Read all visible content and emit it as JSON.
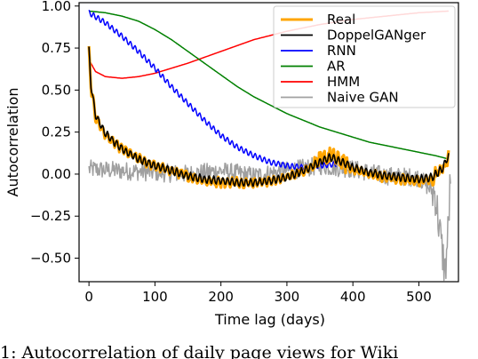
{
  "caption": "1: Autocorrelation of daily page views for Wiki",
  "chart_data": {
    "type": "line",
    "xlabel": "Time lag (days)",
    "ylabel": "Autocorrelation",
    "xlim": [
      -15,
      560
    ],
    "ylim": [
      -0.64,
      1.02
    ],
    "xticks": [
      0,
      100,
      200,
      300,
      400,
      500
    ],
    "yticks": [
      1.0,
      0.75,
      0.5,
      0.25,
      0.0,
      -0.25,
      -0.5
    ],
    "ytick_labels": [
      "1.00",
      "0.75",
      "0.50",
      "0.25",
      "0.00",
      "−0.25",
      "−0.50"
    ],
    "grid": false,
    "legend_position": "top-right",
    "series": [
      {
        "name": "Real",
        "color": "#ffa500",
        "x": [
          0,
          3,
          10,
          25,
          50,
          75,
          100,
          125,
          150,
          175,
          200,
          225,
          250,
          275,
          300,
          325,
          350,
          365,
          380,
          400,
          425,
          450,
          475,
          500,
          520,
          535,
          545
        ],
        "values": [
          0.73,
          0.52,
          0.34,
          0.23,
          0.15,
          0.09,
          0.05,
          0.02,
          -0.01,
          -0.04,
          -0.05,
          -0.05,
          -0.05,
          -0.04,
          -0.02,
          0.02,
          0.08,
          0.11,
          0.08,
          0.03,
          0.0,
          -0.02,
          -0.03,
          -0.04,
          -0.03,
          0.02,
          0.1
        ]
      },
      {
        "name": "DoppelGANger",
        "color": "#000000",
        "x": [
          0,
          3,
          10,
          25,
          50,
          75,
          100,
          125,
          150,
          175,
          200,
          225,
          250,
          275,
          300,
          325,
          350,
          365,
          380,
          400,
          425,
          450,
          475,
          500,
          520,
          535,
          545
        ],
        "values": [
          0.74,
          0.53,
          0.35,
          0.24,
          0.15,
          0.09,
          0.05,
          0.02,
          -0.01,
          -0.03,
          -0.04,
          -0.05,
          -0.05,
          -0.04,
          -0.02,
          0.02,
          0.07,
          0.1,
          0.08,
          0.04,
          0.01,
          -0.01,
          -0.02,
          -0.03,
          -0.02,
          0.03,
          0.11
        ]
      },
      {
        "name": "RNN",
        "color": "#0000ff",
        "x": [
          0,
          25,
          50,
          75,
          100,
          125,
          150,
          175,
          200,
          225,
          250,
          275,
          300,
          325,
          350,
          375
        ],
        "values": [
          0.96,
          0.9,
          0.82,
          0.73,
          0.63,
          0.52,
          0.42,
          0.32,
          0.23,
          0.16,
          0.11,
          0.07,
          0.05,
          0.04,
          0.05,
          0.06
        ]
      },
      {
        "name": "AR",
        "color": "#008000",
        "x": [
          0,
          25,
          50,
          75,
          100,
          125,
          150,
          175,
          200,
          225,
          250,
          275,
          300,
          325,
          350,
          375,
          400,
          425,
          450,
          475,
          500,
          525,
          545
        ],
        "values": [
          0.97,
          0.96,
          0.94,
          0.91,
          0.86,
          0.8,
          0.73,
          0.66,
          0.59,
          0.52,
          0.46,
          0.41,
          0.36,
          0.32,
          0.28,
          0.25,
          0.22,
          0.19,
          0.17,
          0.15,
          0.13,
          0.11,
          0.09
        ]
      },
      {
        "name": "HMM",
        "color": "#ff0000",
        "x": [
          0,
          10,
          25,
          50,
          75,
          100,
          150,
          200,
          250,
          300,
          350,
          400,
          450,
          500,
          545
        ],
        "values": [
          0.68,
          0.61,
          0.58,
          0.57,
          0.58,
          0.6,
          0.66,
          0.73,
          0.8,
          0.85,
          0.89,
          0.92,
          0.94,
          0.96,
          0.97
        ]
      },
      {
        "name": "Naive GAN",
        "color": "#a0a0a0",
        "x": [
          0,
          50,
          100,
          150,
          200,
          250,
          300,
          350,
          400,
          450,
          500,
          525,
          535,
          540,
          545,
          548
        ],
        "values": [
          0.03,
          0.02,
          0.01,
          0.0,
          0.02,
          -0.01,
          0.02,
          0.05,
          0.03,
          -0.01,
          -0.02,
          -0.12,
          -0.45,
          -0.58,
          -0.3,
          0.0
        ]
      }
    ]
  }
}
